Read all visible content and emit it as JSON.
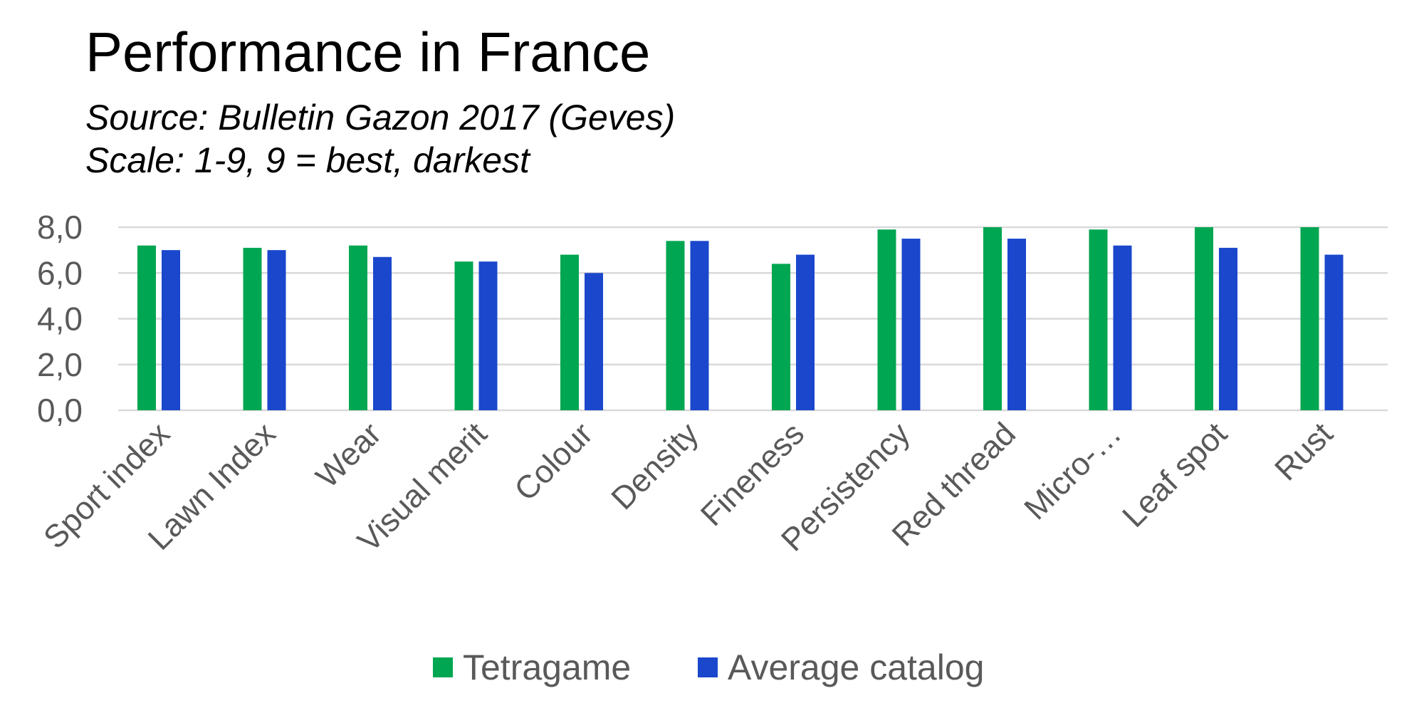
{
  "title": "Performance in France",
  "subtitle_1": "Source: Bulletin Gazon 2017 (Geves)",
  "subtitle_2": "Scale: 1-9, 9 = best, darkest",
  "chart_data": {
    "type": "bar",
    "title": "Performance in France",
    "xlabel": "",
    "ylabel": "",
    "ylim": [
      0,
      8
    ],
    "yticks": [
      "0,0",
      "2,0",
      "4,0",
      "6,0",
      "8,0"
    ],
    "grid": true,
    "legend_position": "bottom",
    "categories": [
      "Sport index",
      "Lawn Index",
      "Wear",
      "Visual merit",
      "Colour",
      "Density",
      "Fineness",
      "Persistency",
      "Red thread",
      "Micro-…",
      "Leaf spot",
      "Rust"
    ],
    "series": [
      {
        "name": "Tetragame",
        "color": "#00A651",
        "values": [
          7.2,
          7.1,
          7.2,
          6.5,
          6.8,
          7.4,
          6.4,
          7.9,
          8.0,
          7.9,
          8.0,
          8.0
        ]
      },
      {
        "name": "Average catalog",
        "color": "#1A47CC",
        "values": [
          7.0,
          7.0,
          6.7,
          6.5,
          6.0,
          7.4,
          6.8,
          7.5,
          7.5,
          7.2,
          7.1,
          6.8
        ]
      }
    ]
  }
}
